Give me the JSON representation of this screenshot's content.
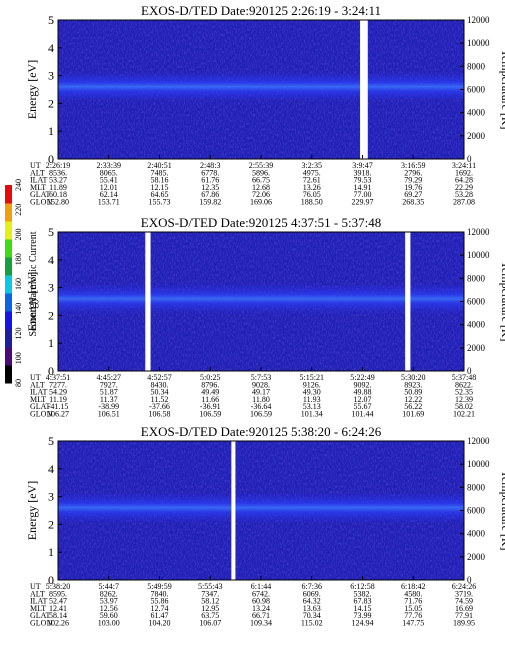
{
  "chart_data": [
    {
      "type": "heatmap",
      "title": "EXOS-D/TED   Date:920125   2:26:19 - 3:24:11",
      "ylabel": "Energy [eV]",
      "ylabel_right": "Temperature [K]",
      "ylim": [
        0,
        5
      ],
      "ylim_right": [
        0,
        12000
      ],
      "yticks": [
        "0",
        "1",
        "2",
        "3",
        "4",
        "5"
      ],
      "yticks_right": [
        "0",
        "2000",
        "4000",
        "6000",
        "8000",
        "10000",
        "12000"
      ],
      "band_center_ev": 2.6,
      "row_labels": [
        "UT",
        "ALT",
        "ILAT",
        "MLT",
        "GLAT",
        "GLON"
      ],
      "columns": [
        [
          "2:26:19",
          "8536.",
          "53.27",
          "11.89",
          "60.18",
          "152.80"
        ],
        [
          "2:33:39",
          "8065.",
          "55.41",
          "12.01",
          "62.14",
          "153.71"
        ],
        [
          "2:40:51",
          "7485.",
          "58.16",
          "12.15",
          "64.65",
          "155.73"
        ],
        [
          "2:48:3",
          "6778.",
          "61.76",
          "12.35",
          "67.86",
          "159.82"
        ],
        [
          "2:55:39",
          "5896.",
          "66.75",
          "12.68",
          "72.06",
          "169.06"
        ],
        [
          "3:2:35",
          "4975.",
          "72.61",
          "13.26",
          "76.05",
          "188.50"
        ],
        [
          "3:9:47",
          "3918.",
          "79.53",
          "14.91",
          "77.00",
          "229.97"
        ],
        [
          "3:16:59",
          "2796.",
          "79.29",
          "19.76",
          "69.27",
          "268.35"
        ],
        [
          "3:24:11",
          "1692.",
          "64.28",
          "22.29",
          "53.28",
          "287.08"
        ]
      ],
      "gaps": [
        [
          0.744,
          0.763
        ]
      ]
    },
    {
      "type": "heatmap",
      "title": "EXOS-D/TED   Date:920125   4:37:51 - 5:37:48",
      "ylabel": "Energy [eV]",
      "ylabel_right": "Temperature [K]",
      "ylim": [
        0,
        5
      ],
      "ylim_right": [
        0,
        12000
      ],
      "yticks": [
        "0",
        "1",
        "2",
        "3",
        "4",
        "5"
      ],
      "yticks_right": [
        "0",
        "2000",
        "4000",
        "6000",
        "8000",
        "10000",
        "12000"
      ],
      "band_center_ev": 2.6,
      "row_labels": [
        "UT",
        "ALT",
        "ILAT",
        "MLT",
        "GLAT",
        "GLON"
      ],
      "columns": [
        [
          "4:37:51",
          "7277.",
          "54.29",
          "11.19",
          "-41.15",
          "106.27"
        ],
        [
          "4:45:27",
          "7927.",
          "51.87",
          "11.37",
          "-38.99",
          "106.51"
        ],
        [
          "4:52:57",
          "8430.",
          "50.34",
          "11.52",
          "-37.66",
          "106.58"
        ],
        [
          "5:0:25",
          "8796.",
          "49.49",
          "11.66",
          "-36.91",
          "106.59"
        ],
        [
          "5:7:53",
          "9028.",
          "49.17",
          "11.80",
          "-36.64",
          "106.59"
        ],
        [
          "5:15:21",
          "9126.",
          "49.30",
          "11.93",
          "53.13",
          "101.34"
        ],
        [
          "5:22:49",
          "9092.",
          "49.88",
          "12.07",
          "55.67",
          "101.44"
        ],
        [
          "5:30:20",
          "8923.",
          "50.89",
          "12.22",
          "56.22",
          "101.69"
        ],
        [
          "5:37:48",
          "8622.",
          "52.35",
          "12.39",
          "58.02",
          "102.21"
        ]
      ],
      "gaps": [
        [
          0.215,
          0.228
        ],
        [
          0.855,
          0.868
        ]
      ]
    },
    {
      "type": "heatmap",
      "title": "EXOS-D/TED   Date:920125   5:38:20 - 6:24:26",
      "ylabel": "Energy [eV]",
      "ylabel_right": "Temperature [K]",
      "ylim": [
        0,
        5
      ],
      "ylim_right": [
        0,
        12000
      ],
      "yticks": [
        "0",
        "1",
        "2",
        "3",
        "4",
        "5"
      ],
      "yticks_right": [
        "0",
        "2000",
        "4000",
        "6000",
        "8000",
        "10000",
        "12000"
      ],
      "band_center_ev": 2.6,
      "row_labels": [
        "UT",
        "ALT",
        "ILAT",
        "MLT",
        "GLAT",
        "GLON"
      ],
      "columns": [
        [
          "5:38:20",
          "8595.",
          "52.47",
          "12.41",
          "58.14",
          "102.26"
        ],
        [
          "5:44:7",
          "8262.",
          "53.97",
          "12.56",
          "59.60",
          "103.00"
        ],
        [
          "5:49:59",
          "7840.",
          "55.86",
          "12.74",
          "61.47",
          "104.20"
        ],
        [
          "5:55:43",
          "7347.",
          "58.12",
          "12.95",
          "63.75",
          "106.07"
        ],
        [
          "6:1:44",
          "6742.",
          "60.98",
          "13.24",
          "66.71",
          "109.34"
        ],
        [
          "6:7:36",
          "6069.",
          "64.32",
          "13.63",
          "70.34",
          "115.02"
        ],
        [
          "6:12:58",
          "5382.",
          "67.83",
          "14.15",
          "73.99",
          "124.94"
        ],
        [
          "6:18:42",
          "4580.",
          "71.76",
          "15.05",
          "77.76",
          "147.75"
        ],
        [
          "6:24:26",
          "3719.",
          "74.59",
          "16.69",
          "77.91",
          "189.95"
        ]
      ],
      "gaps": [
        [
          0.427,
          0.437
        ]
      ]
    }
  ],
  "colorbar": {
    "label": "Second Harmonic Current",
    "ticks": [
      "80",
      "100",
      "120",
      "140",
      "160",
      "180",
      "200",
      "220",
      "240"
    ],
    "colors": [
      "#000000",
      "#4b0a78",
      "#1e1ea0",
      "#1414e6",
      "#0a64e6",
      "#0ac8e6",
      "#14a03c",
      "#3cdc14",
      "#e6f014",
      "#f0a00a",
      "#e60a0a"
    ]
  }
}
